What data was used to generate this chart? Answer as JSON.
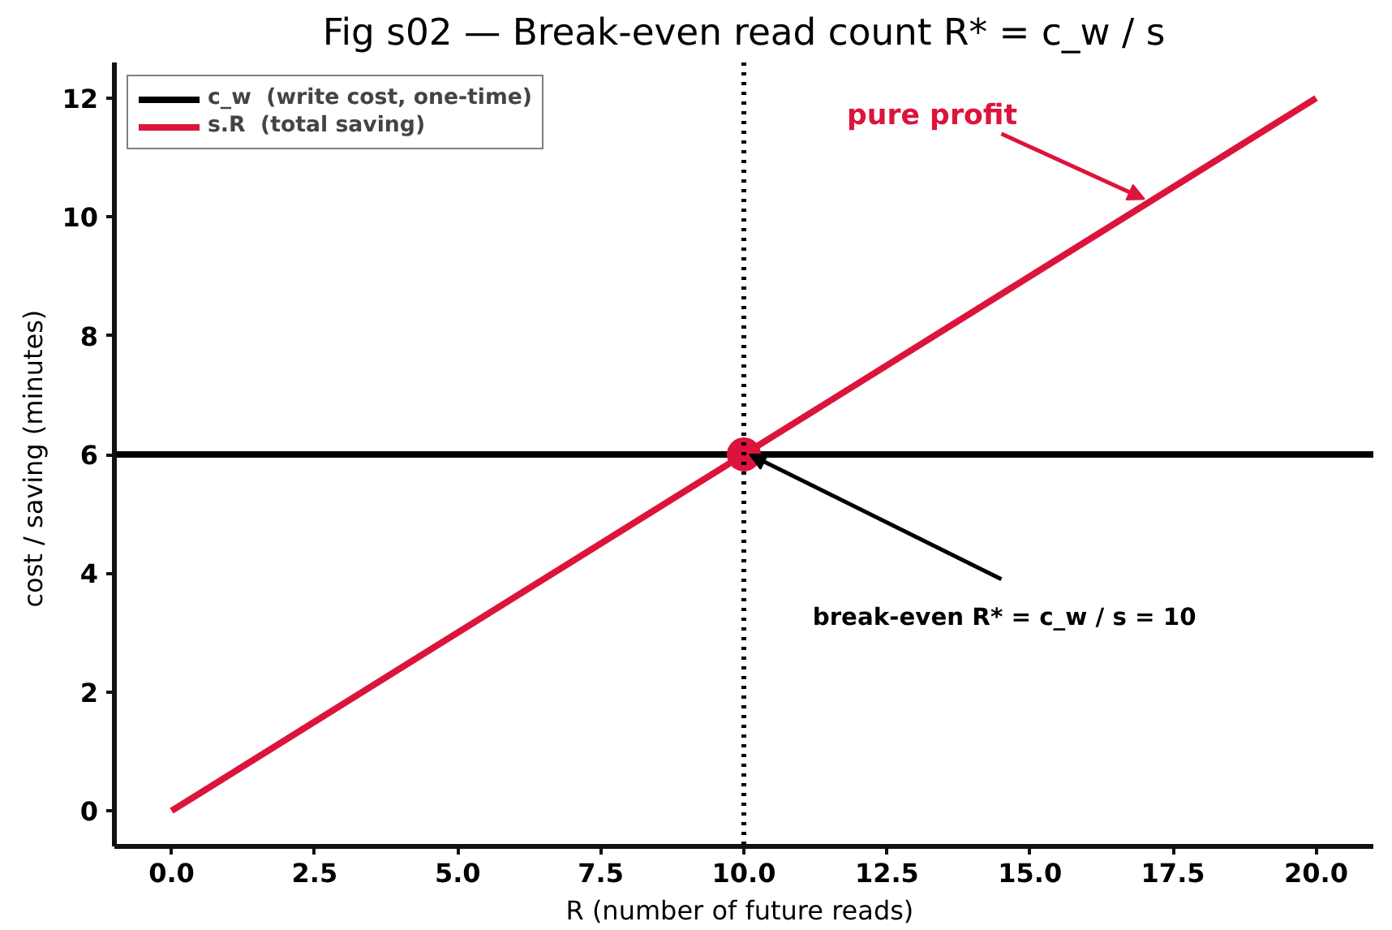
{
  "chart_data": {
    "type": "line",
    "title": "Fig s02 — Break-even read count R* = c_w / s",
    "xlabel": "R  (number of future reads)",
    "ylabel": "cost / saving  (minutes)",
    "xlim": [
      -1,
      21
    ],
    "ylim": [
      -0.6,
      12.6
    ],
    "xticks": [
      {
        "value": 0,
        "label": "0.0"
      },
      {
        "value": 2.5,
        "label": "2.5"
      },
      {
        "value": 5,
        "label": "5.0"
      },
      {
        "value": 7.5,
        "label": "7.5"
      },
      {
        "value": 10,
        "label": "10.0"
      },
      {
        "value": 12.5,
        "label": "12.5"
      },
      {
        "value": 15,
        "label": "15.0"
      },
      {
        "value": 17.5,
        "label": "17.5"
      },
      {
        "value": 20,
        "label": "20.0"
      }
    ],
    "yticks": [
      0,
      2,
      4,
      6,
      8,
      10,
      12
    ],
    "series": [
      {
        "name": "c_w  (write cost, one-time)",
        "color": "#000000",
        "x": [
          -1,
          21
        ],
        "values": [
          6,
          6
        ]
      },
      {
        "name": "s.R  (total saving)",
        "color": "#dc143c",
        "x": [
          0,
          20
        ],
        "values": [
          0,
          12
        ]
      },
      {
        "type": "scatter",
        "color": "#dc143c",
        "x": [
          10
        ],
        "values": [
          6
        ],
        "marker": "circle"
      }
    ],
    "ref_lines": [
      {
        "axis": "x",
        "value": 10,
        "color": "#000000",
        "line_style": "dotted"
      }
    ],
    "annotations": [
      {
        "text": "pure profit",
        "x": 17,
        "y": 10.3
      },
      {
        "text": "break-even  R* = c_w / s = 10",
        "x": 10.1,
        "y": 6
      }
    ],
    "grid": false,
    "legend": "top left",
    "marker": "none",
    "line_style": "solid"
  }
}
